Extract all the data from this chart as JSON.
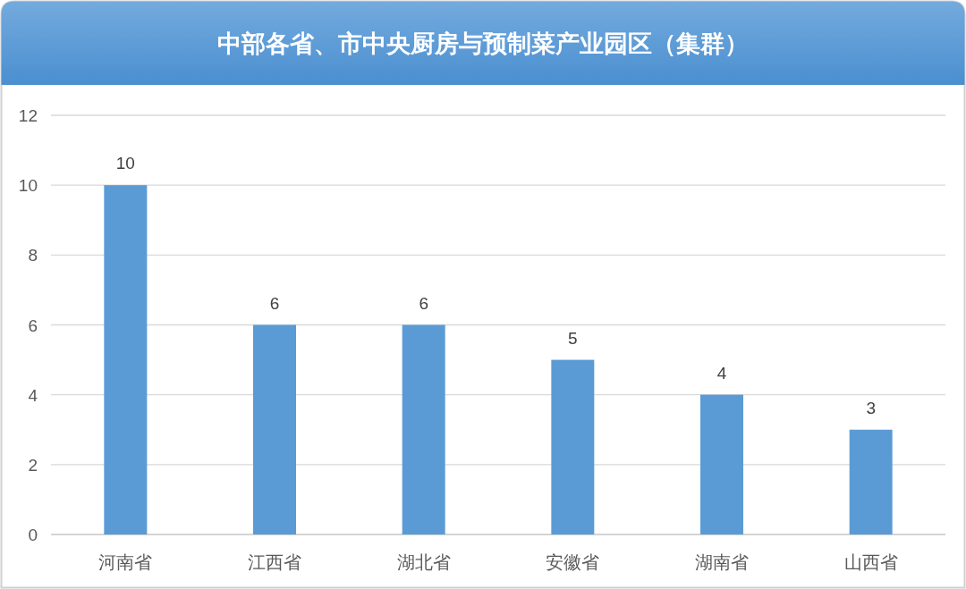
{
  "chart_data": {
    "type": "bar",
    "title": "中部各省、市中央厨房与预制菜产业园区（集群）",
    "categories": [
      "河南省",
      "江西省",
      "湖北省",
      "安徽省",
      "湖南省",
      "山西省"
    ],
    "values": [
      10,
      6,
      6,
      5,
      4,
      3
    ],
    "color": "#5b9bd5",
    "ylim": [
      0,
      12
    ],
    "yticks": [
      0,
      2,
      4,
      6,
      8,
      10,
      12
    ],
    "grid": "y",
    "data_labels": true
  }
}
